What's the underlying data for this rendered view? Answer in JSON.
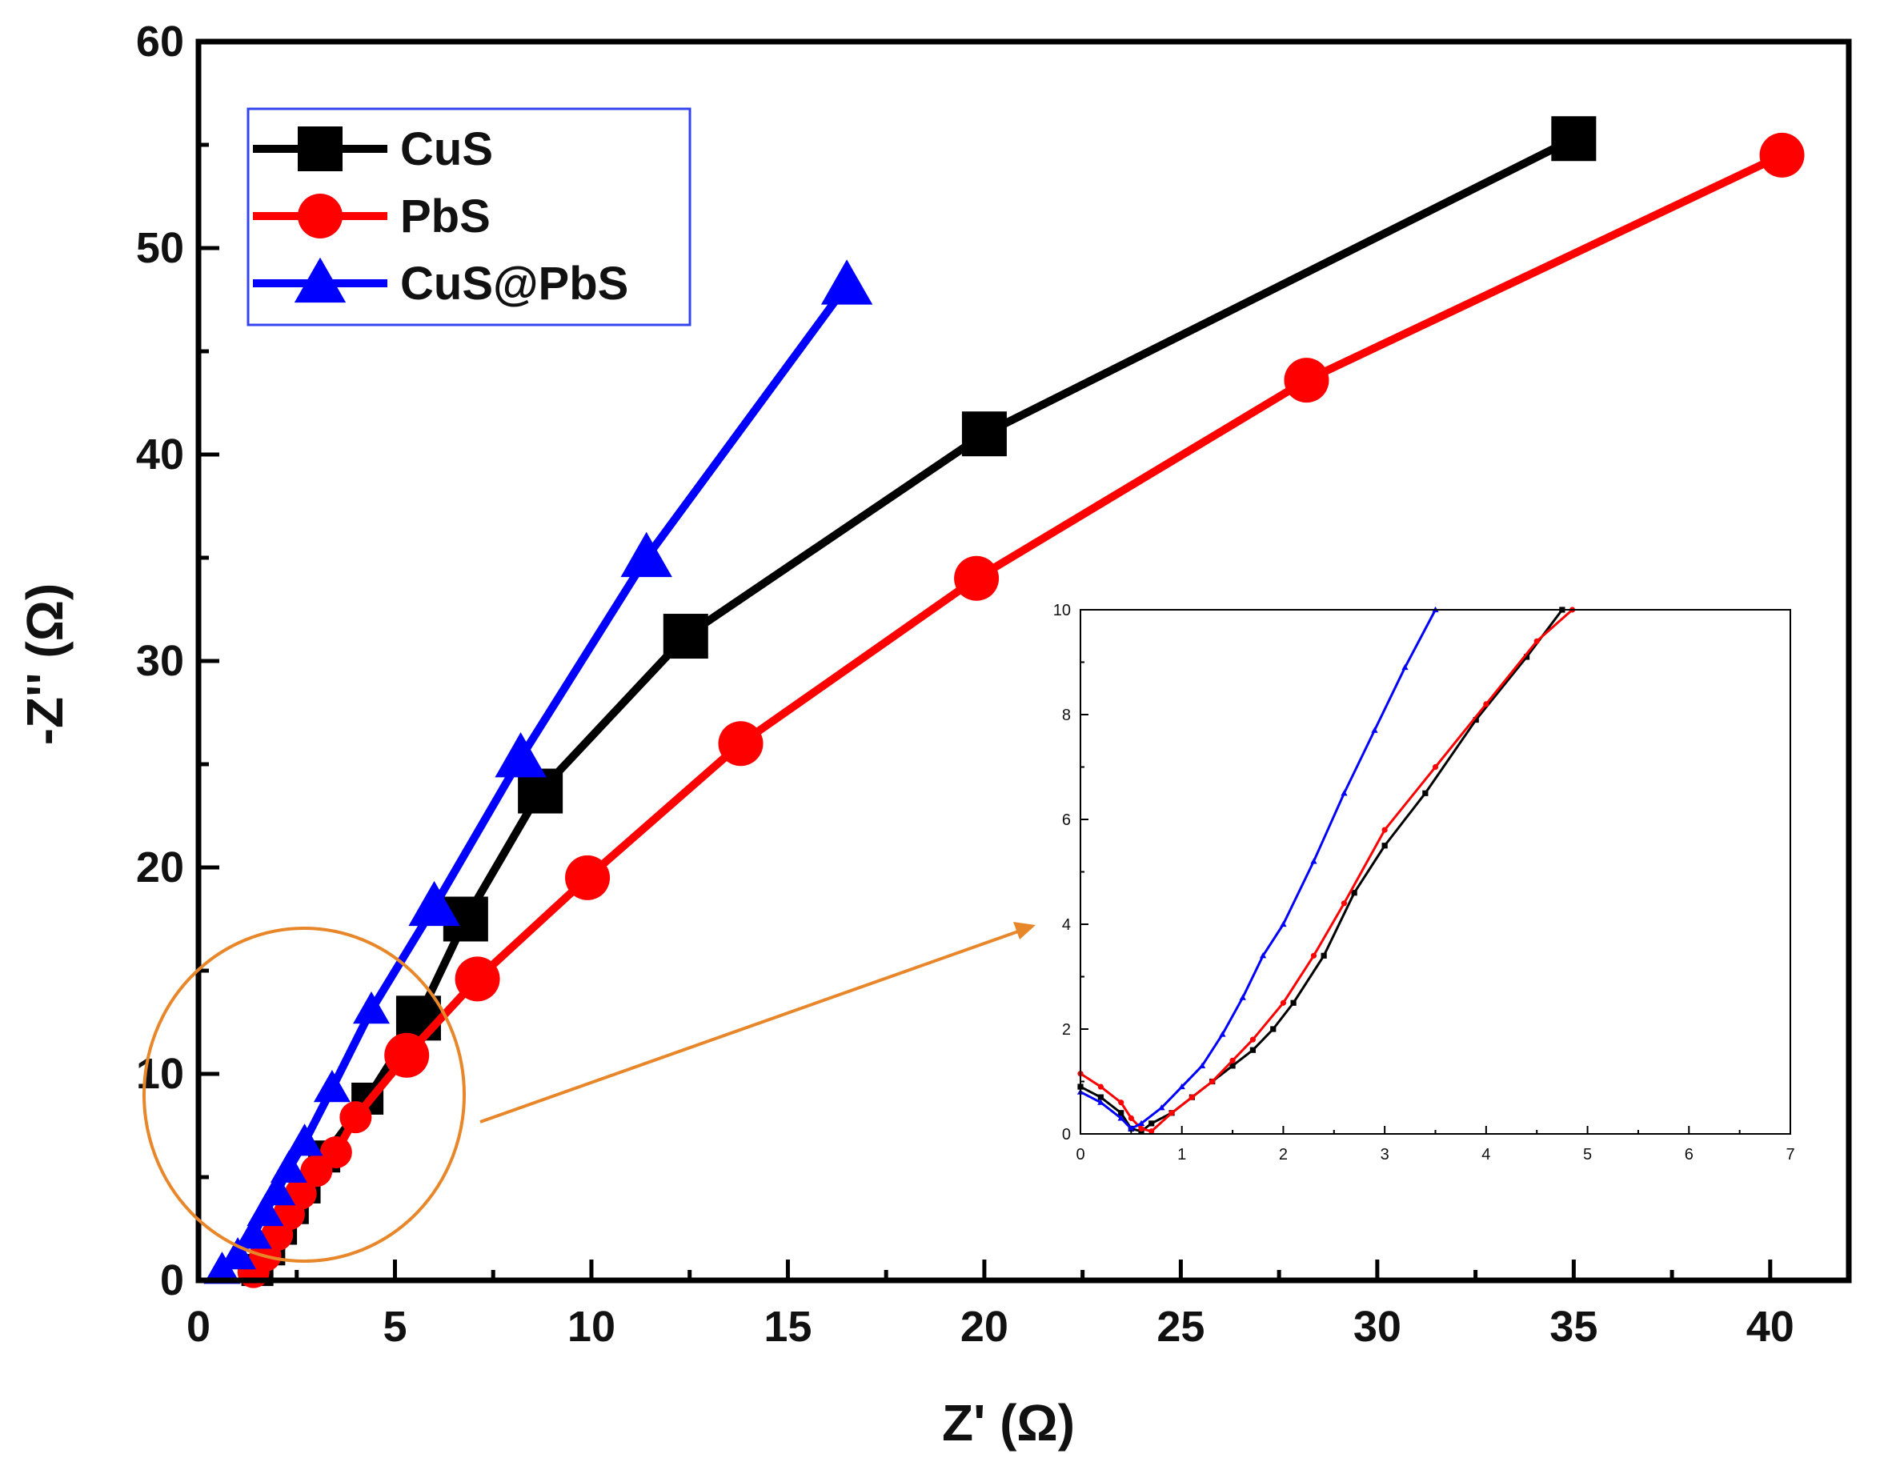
{
  "chart_data": [
    {
      "type": "line",
      "title": "",
      "xlabel": "Z' (Ω)",
      "ylabel": "-Z'' (Ω)",
      "xlim": [
        0,
        42
      ],
      "ylim": [
        0,
        60
      ],
      "xticks": [
        "0",
        "5",
        "10",
        "15",
        "20",
        "25",
        "30",
        "35",
        "40"
      ],
      "yticks": [
        "0",
        "10",
        "20",
        "30",
        "40",
        "50",
        "60"
      ],
      "legend": "top-left",
      "series": [
        {
          "name": "CuS",
          "color": "#000000",
          "marker": "square",
          "x": [
            1.5,
            1.8,
            2.1,
            2.4,
            2.7,
            3.2,
            4.3,
            5.6,
            6.8,
            8.7,
            12.4,
            20.0,
            35.0
          ],
          "y": [
            0.5,
            1.5,
            2.5,
            3.5,
            4.5,
            6.0,
            8.8,
            12.7,
            17.5,
            23.7,
            31.2,
            41.0,
            55.3
          ]
        },
        {
          "name": "PbS",
          "color": "#ff0000",
          "marker": "circle",
          "x": [
            1.4,
            1.7,
            2.0,
            2.3,
            2.6,
            3.0,
            3.5,
            4.0,
            5.3,
            7.1,
            9.9,
            13.8,
            19.8,
            28.2,
            40.3
          ],
          "y": [
            0.4,
            1.2,
            2.2,
            3.2,
            4.2,
            5.3,
            6.2,
            7.9,
            10.9,
            14.6,
            19.5,
            26.0,
            34.0,
            43.6,
            54.5
          ]
        },
        {
          "name": "CuS@PbS",
          "color": "#0000ff",
          "marker": "triangle",
          "x": [
            0.6,
            1.0,
            1.4,
            1.7,
            2.0,
            2.3,
            2.7,
            3.4,
            4.4,
            6.0,
            8.2,
            11.4,
            16.5
          ],
          "y": [
            0.5,
            1.2,
            2.2,
            3.3,
            4.3,
            5.4,
            6.7,
            9.3,
            13.1,
            18.1,
            25.3,
            35.0,
            48.2
          ]
        }
      ]
    },
    {
      "type": "line",
      "title": "",
      "xlabel": "",
      "ylabel": "",
      "xlim": [
        0,
        7
      ],
      "ylim": [
        0,
        10
      ],
      "xticks": [
        "0",
        "1",
        "2",
        "3",
        "4",
        "5",
        "6",
        "7"
      ],
      "yticks": [
        "0",
        "2",
        "4",
        "6",
        "8",
        "10"
      ],
      "series": [
        {
          "name": "CuS",
          "color": "#000000",
          "x": [
            0,
            0.2,
            0.4,
            0.5,
            0.6,
            0.7,
            0.9,
            1.1,
            1.3,
            1.5,
            1.7,
            1.9,
            2.1,
            2.4,
            2.7,
            3.0,
            3.4,
            3.9,
            4.4,
            4.75
          ],
          "y": [
            0.9,
            0.7,
            0.4,
            0.1,
            0.05,
            0.2,
            0.4,
            0.7,
            1.0,
            1.3,
            1.6,
            2.0,
            2.5,
            3.4,
            4.6,
            5.5,
            6.5,
            7.9,
            9.1,
            10.0
          ]
        },
        {
          "name": "PbS",
          "color": "#ff0000",
          "x": [
            0,
            0.2,
            0.4,
            0.5,
            0.6,
            0.7,
            0.9,
            1.1,
            1.3,
            1.5,
            1.7,
            2.0,
            2.3,
            2.6,
            3.0,
            3.5,
            4.0,
            4.5,
            4.85
          ],
          "y": [
            1.15,
            0.9,
            0.6,
            0.3,
            0.1,
            0.05,
            0.4,
            0.7,
            1.0,
            1.4,
            1.8,
            2.5,
            3.4,
            4.4,
            5.8,
            7.0,
            8.2,
            9.4,
            10.0
          ]
        },
        {
          "name": "CuS@PbS",
          "color": "#0000ff",
          "x": [
            0,
            0.2,
            0.4,
            0.5,
            0.6,
            0.8,
            1.0,
            1.2,
            1.4,
            1.6,
            1.8,
            2.0,
            2.3,
            2.6,
            2.9,
            3.2,
            3.5
          ],
          "y": [
            0.8,
            0.6,
            0.3,
            0.1,
            0.2,
            0.5,
            0.9,
            1.3,
            1.9,
            2.6,
            3.4,
            4.0,
            5.2,
            6.5,
            7.7,
            8.9,
            10.0
          ]
        }
      ]
    }
  ]
}
